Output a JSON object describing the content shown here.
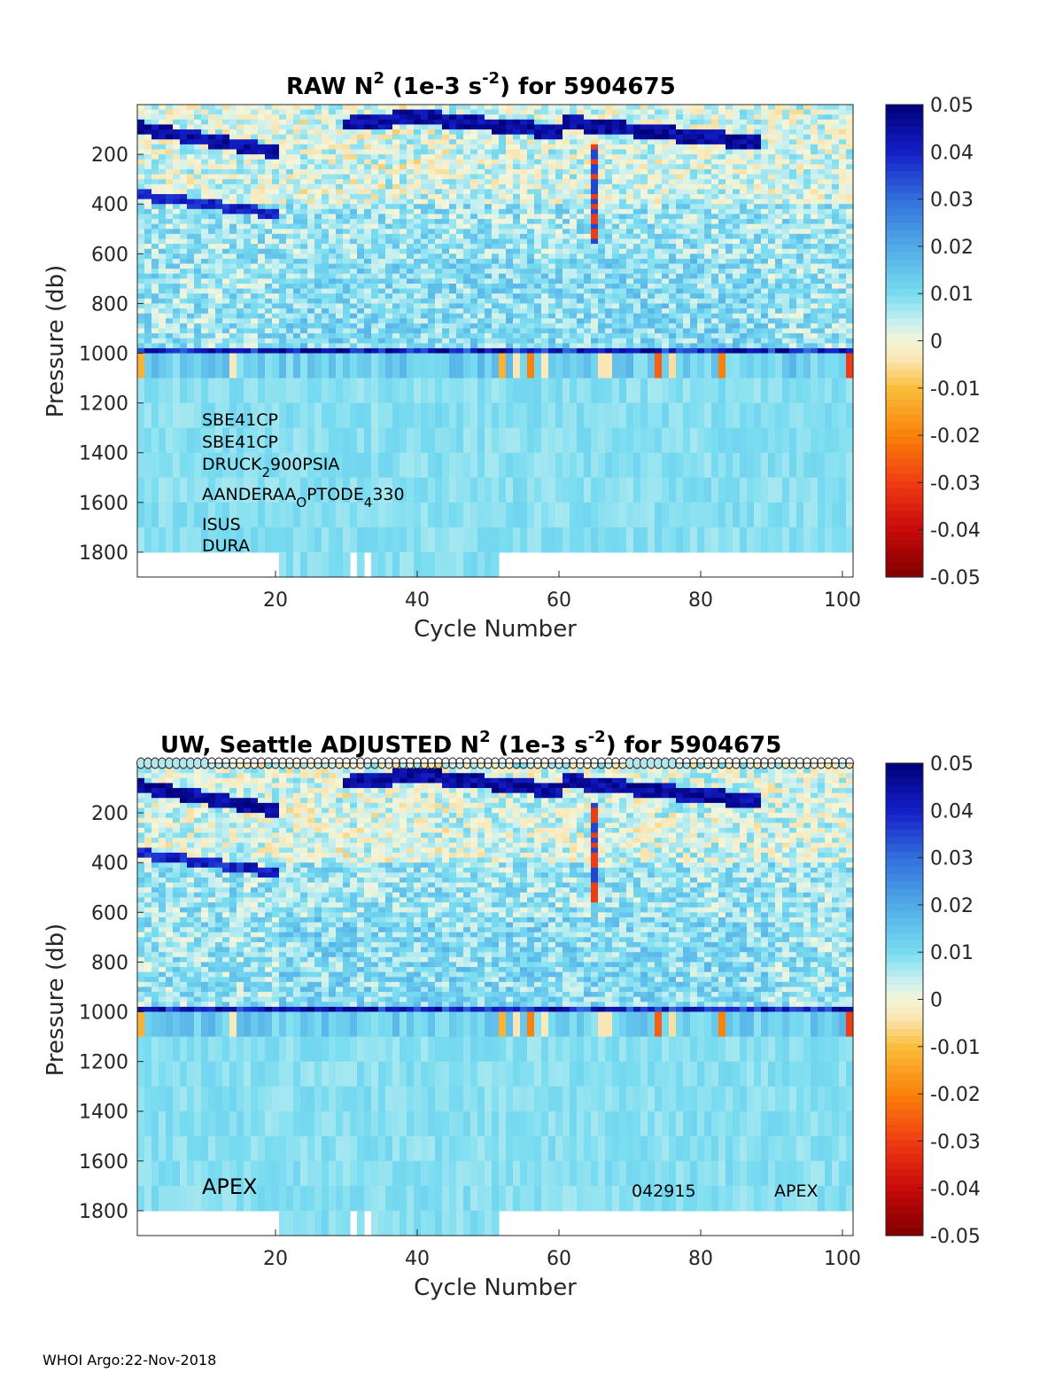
{
  "footer": "WHOI Argo:22-Nov-2018",
  "chart_data": [
    {
      "type": "heatmap",
      "title_main": "RAW N",
      "title_sup1": "2",
      "title_mid": " (1e-3 s",
      "title_sup2": "-2",
      "title_end": ") for 5904675",
      "xlabel": "Cycle Number",
      "ylabel": "Pressure (db)",
      "xlim": [
        1,
        101
      ],
      "ylim": [
        1900,
        0
      ],
      "xticks": [
        "20",
        "40",
        "60",
        "80",
        "100"
      ],
      "yticks": [
        "200",
        "400",
        "600",
        "800",
        "1000",
        "1200",
        "1400",
        "1600",
        "1800"
      ],
      "colorbar": {
        "range": [
          -0.05,
          0.05
        ],
        "ticks": [
          "0.05",
          "0.04",
          "0.03",
          "0.02",
          "0.01",
          "0",
          "-0.01",
          "-0.02",
          "-0.03",
          "-0.04",
          "-0.05"
        ]
      },
      "sensors": {
        "s1": "SBE41CP",
        "s2": "SBE41CP",
        "s3_a": "DRUCK",
        "s3_sub": "2",
        "s3_b": "900PSIA",
        "s4_a": "AANDERAA",
        "s4_sub1": "O",
        "s4_b": "PTODE",
        "s4_sub2": "4",
        "s4_c": "330",
        "s5": "ISUS",
        "s6": "DURA"
      },
      "description": "N2 section: strong positive (dark blue) stratification band near 100-250 db for cycles 1-20, second band near 350-450 db cycles 1-20, shallow band 50-200 db cycles 30-88; uniform light cyan below 1000 db; orange/red negative cells at ~1000-1100 db for cycles 1, 14, 52, 56, 65, 74, 83, 101"
    },
    {
      "type": "heatmap",
      "title_pre": "UW, Seattle  ADJUSTED N",
      "title_sup1": "2",
      "title_mid": " (1e-3 s",
      "title_sup2": "-2",
      "title_end": ") for 5904675",
      "xlabel": "Cycle Number",
      "ylabel": "Pressure (db)",
      "xlim": [
        1,
        101
      ],
      "ylim": [
        1900,
        0
      ],
      "xticks": [
        "20",
        "40",
        "60",
        "80",
        "100"
      ],
      "yticks": [
        "200",
        "400",
        "600",
        "800",
        "1000",
        "1200",
        "1400",
        "1600",
        "1800"
      ],
      "colorbar": {
        "range": [
          -0.05,
          0.05
        ],
        "ticks": [
          "0.05",
          "0.04",
          "0.03",
          "0.02",
          "0.01",
          "0",
          "-0.01",
          "-0.02",
          "-0.03",
          "-0.04",
          "-0.05"
        ]
      },
      "annotations": {
        "left": "APEX",
        "date": "042915",
        "right": "APEX"
      },
      "qc_markers": "open circles along top edge, one per cycle 1-101"
    }
  ]
}
